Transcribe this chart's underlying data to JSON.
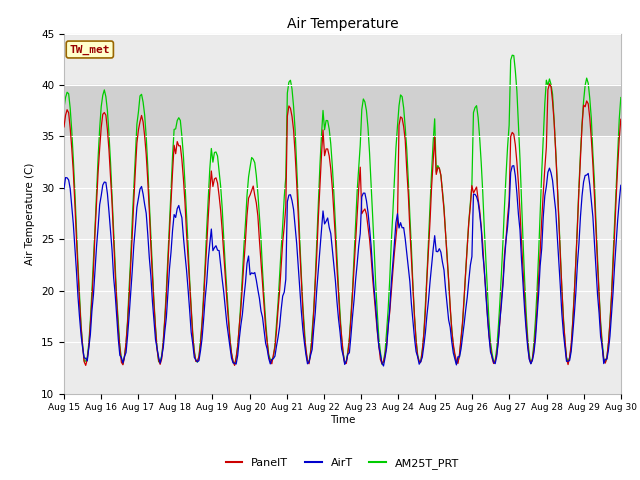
{
  "title": "Air Temperature",
  "ylabel": "Air Temperature (C)",
  "xlabel": "Time",
  "ylim": [
    10,
    45
  ],
  "xlim": [
    0,
    15
  ],
  "legend_label": "TW_met",
  "series": {
    "PanelT": {
      "color": "#cc0000",
      "label": "PanelT"
    },
    "AirT": {
      "color": "#0000cc",
      "label": "AirT"
    },
    "AM25T_PRT": {
      "color": "#00cc00",
      "label": "AM25T_PRT"
    }
  },
  "shade_ymin": 35,
  "shade_ymax": 40,
  "shade_color": "#d0d0d0",
  "x_tick_labels": [
    "Aug 15",
    "Aug 16",
    "Aug 17",
    "Aug 18",
    "Aug 19",
    "Aug 20",
    "Aug 21",
    "Aug 22",
    "Aug 23",
    "Aug 24",
    "Aug 25",
    "Aug 26",
    "Aug 27",
    "Aug 28",
    "Aug 29",
    "Aug 30"
  ],
  "background_color": "#ffffff",
  "plot_bg_color": "#ebebeb",
  "panel_max": [
    37.5,
    37.5,
    37.0,
    34.5,
    31.0,
    30.0,
    38.0,
    34.0,
    28.0,
    37.0,
    32.0,
    30.0,
    35.5,
    40.0,
    38.5
  ],
  "air_max": [
    31.0,
    30.5,
    30.0,
    28.0,
    24.5,
    22.0,
    29.5,
    27.0,
    29.5,
    26.5,
    24.0,
    29.5,
    32.0,
    32.0,
    31.5
  ],
  "am25_max": [
    39.5,
    39.5,
    39.0,
    37.0,
    33.5,
    33.0,
    40.5,
    36.5,
    38.5,
    39.0,
    32.0,
    38.0,
    43.0,
    40.5,
    40.5
  ],
  "daily_min": 13.0
}
